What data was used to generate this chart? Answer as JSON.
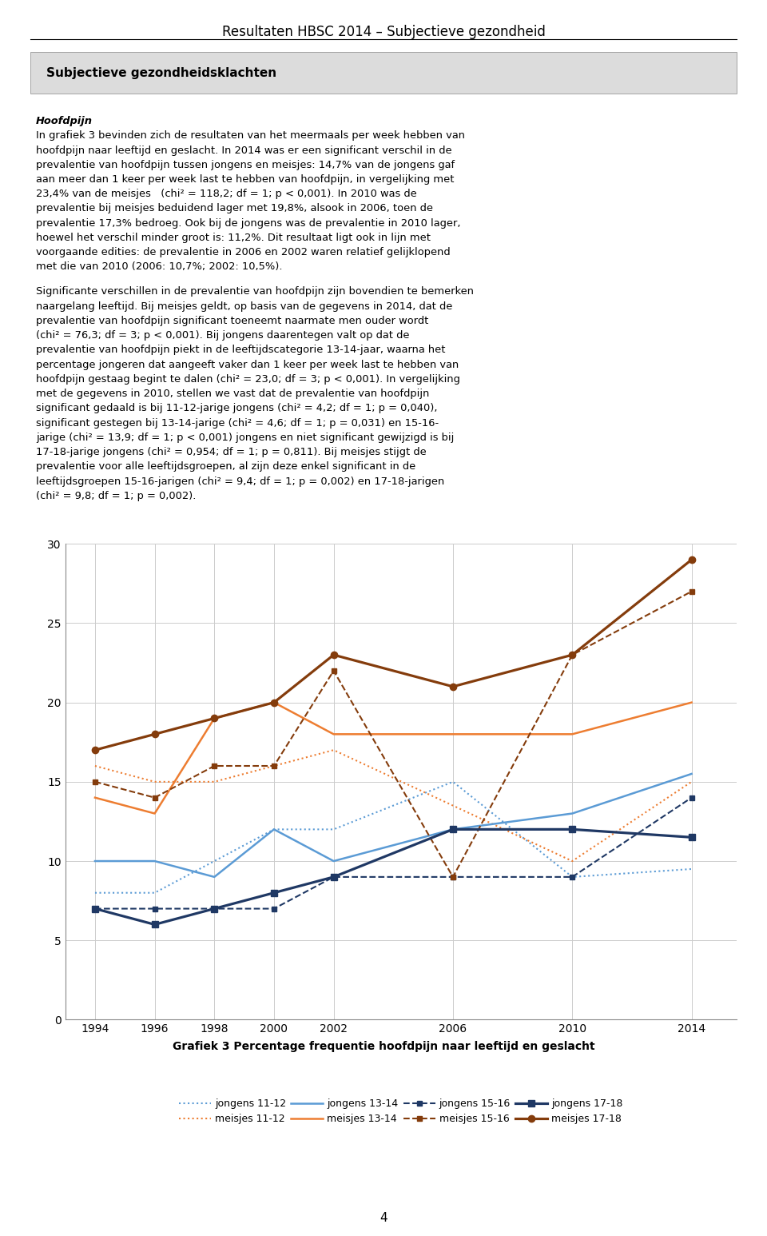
{
  "years": [
    1994,
    1996,
    1998,
    2000,
    2002,
    2006,
    2010,
    2014
  ],
  "jongens_11_12": [
    8.0,
    8.0,
    10.0,
    12.0,
    12.0,
    15.0,
    9.0,
    9.5
  ],
  "meisjes_11_12": [
    16.0,
    15.0,
    15.0,
    16.0,
    17.0,
    null,
    10.0,
    15.0
  ],
  "jongens_13_14": [
    10.0,
    10.0,
    9.0,
    12.0,
    10.0,
    12.0,
    13.0,
    15.5
  ],
  "meisjes_13_14": [
    14.0,
    13.0,
    19.0,
    20.0,
    18.0,
    18.0,
    18.0,
    20.0
  ],
  "jongens_15_16": [
    7.0,
    7.0,
    7.0,
    7.0,
    9.0,
    9.0,
    9.0,
    14.0
  ],
  "meisjes_15_16": [
    15.0,
    14.0,
    16.0,
    16.0,
    22.0,
    9.0,
    23.0,
    27.0
  ],
  "jongens_17_18": [
    7.0,
    6.0,
    7.0,
    8.0,
    9.0,
    12.0,
    12.0,
    11.5
  ],
  "meisjes_17_18": [
    17.0,
    18.0,
    19.0,
    20.0,
    23.0,
    21.0,
    23.0,
    29.0
  ],
  "blue_light": "#5B9BD5",
  "orange_light": "#ED7D31",
  "blue_dark": "#1F3864",
  "orange_dark": "#843C0C",
  "ylim_min": 0,
  "ylim_max": 30,
  "yticks": [
    0,
    5,
    10,
    15,
    20,
    25,
    30
  ],
  "caption": "Grafiek 3 Percentage frequentie hoofdpijn naar leeftijd en geslacht",
  "page_title": "Resultaten HBSC 2014 – Subjectieve gezondheid",
  "header_box_text": "Subjectieve gezondheidsklachten",
  "page_number": "4"
}
